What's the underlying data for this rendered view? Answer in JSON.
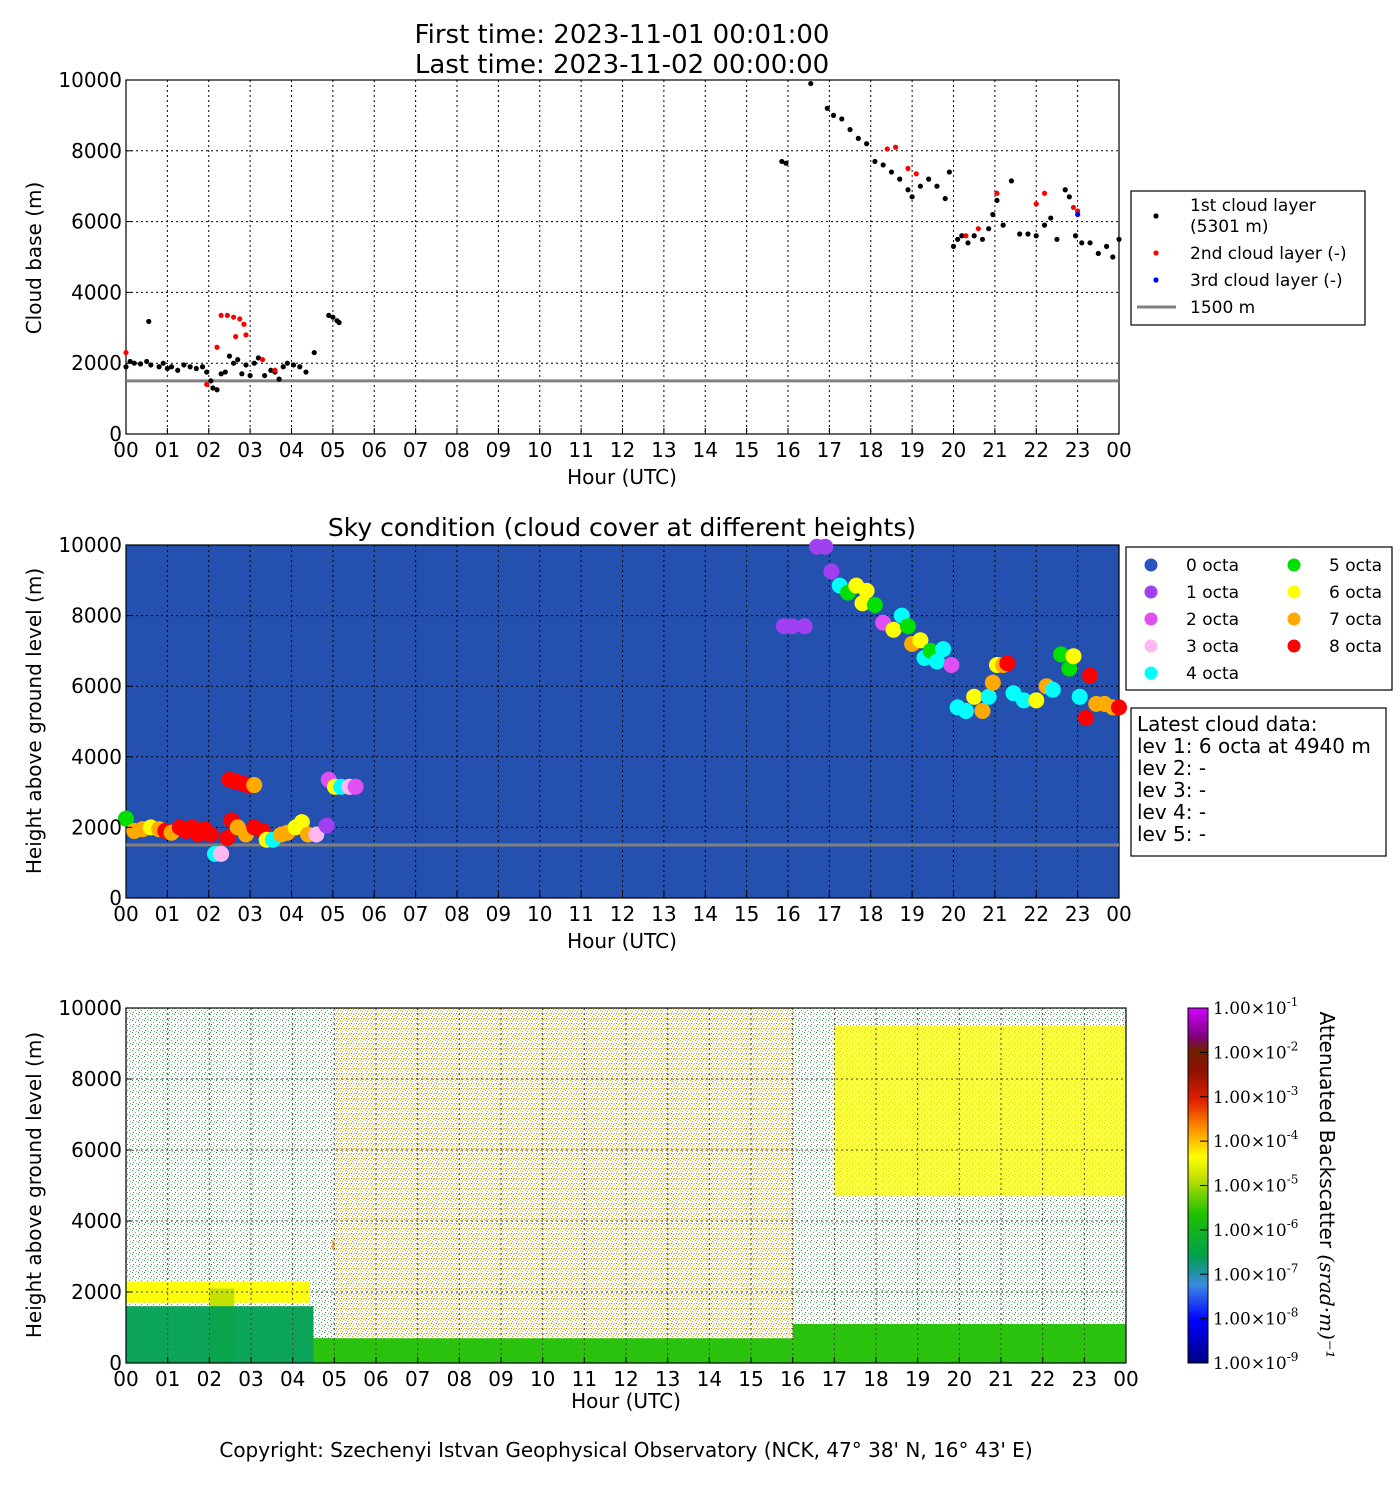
{
  "header": {
    "first_time": "First time: 2023-11-01 00:01:00",
    "last_time": "Last time: 2023-11-02 00:00:00"
  },
  "footer": {
    "copyright": "Copyright: Szechenyi Istvan Geophysical Observatory (NCK, 47° 38' N, 16° 43' E)"
  },
  "colors": {
    "sky_background": "#2450b0",
    "reference_line": "#808080",
    "layer1": "#000000",
    "layer2": "#ff0000",
    "layer3": "#0000ff",
    "octa": [
      "#2a55c0",
      "#a040f0",
      "#e050f0",
      "#ffb8f0",
      "#00ffff",
      "#00e000",
      "#ffff00",
      "#ffaa00",
      "#ff0000"
    ]
  },
  "chart_data": [
    {
      "type": "scatter",
      "title": "",
      "xlabel": "Hour (UTC)",
      "ylabel": "Cloud base (m)",
      "xlim": [
        0,
        24
      ],
      "ylim": [
        0,
        10000
      ],
      "x_ticks": [
        "00",
        "01",
        "02",
        "03",
        "04",
        "05",
        "06",
        "07",
        "08",
        "09",
        "10",
        "11",
        "12",
        "13",
        "14",
        "15",
        "16",
        "17",
        "18",
        "19",
        "20",
        "21",
        "22",
        "23",
        "00"
      ],
      "y_ticks": [
        "0",
        "2000",
        "4000",
        "6000",
        "8000",
        "10000"
      ],
      "grid": true,
      "legend_position": "outside-right",
      "reference_line": {
        "y": 1500,
        "label": "1500 m"
      },
      "series": [
        {
          "name": "1st cloud layer\n(5301 m)",
          "label_lines": [
            "1st cloud layer",
            "(5301 m)"
          ],
          "points": [
            [
              0.0,
              1900
            ],
            [
              0.1,
              2050
            ],
            [
              0.2,
              2000
            ],
            [
              0.35,
              1980
            ],
            [
              0.5,
              2050
            ],
            [
              0.55,
              3180
            ],
            [
              0.6,
              1950
            ],
            [
              0.8,
              1900
            ],
            [
              0.9,
              2000
            ],
            [
              1.0,
              1850
            ],
            [
              1.1,
              1900
            ],
            [
              1.25,
              1800
            ],
            [
              1.4,
              1950
            ],
            [
              1.55,
              1900
            ],
            [
              1.7,
              1850
            ],
            [
              1.85,
              1900
            ],
            [
              1.95,
              1750
            ],
            [
              2.05,
              1500
            ],
            [
              2.1,
              1300
            ],
            [
              2.2,
              1250
            ],
            [
              2.3,
              1700
            ],
            [
              2.4,
              1750
            ],
            [
              2.5,
              2200
            ],
            [
              2.6,
              2000
            ],
            [
              2.7,
              2100
            ],
            [
              2.8,
              1700
            ],
            [
              2.9,
              1950
            ],
            [
              3.0,
              1650
            ],
            [
              3.1,
              2000
            ],
            [
              3.2,
              2150
            ],
            [
              3.35,
              1650
            ],
            [
              3.5,
              1800
            ],
            [
              3.6,
              1750
            ],
            [
              3.7,
              1550
            ],
            [
              3.8,
              1900
            ],
            [
              3.9,
              2000
            ],
            [
              4.05,
              1950
            ],
            [
              4.2,
              1900
            ],
            [
              4.35,
              1750
            ],
            [
              4.55,
              2300
            ],
            [
              4.9,
              3350
            ],
            [
              5.0,
              3300
            ],
            [
              5.1,
              3200
            ],
            [
              5.15,
              3150
            ],
            [
              15.85,
              7700
            ],
            [
              15.95,
              7650
            ],
            [
              16.55,
              9900
            ],
            [
              16.95,
              9200
            ],
            [
              17.1,
              9000
            ],
            [
              17.3,
              8900
            ],
            [
              17.5,
              8600
            ],
            [
              17.7,
              8350
            ],
            [
              17.9,
              8200
            ],
            [
              18.1,
              7700
            ],
            [
              18.3,
              7600
            ],
            [
              18.5,
              7400
            ],
            [
              18.7,
              7200
            ],
            [
              18.9,
              6900
            ],
            [
              19.0,
              6700
            ],
            [
              19.2,
              7000
            ],
            [
              19.4,
              7200
            ],
            [
              19.6,
              7000
            ],
            [
              19.8,
              6650
            ],
            [
              19.9,
              7400
            ],
            [
              20.0,
              5300
            ],
            [
              20.1,
              5500
            ],
            [
              20.2,
              5600
            ],
            [
              20.35,
              5400
            ],
            [
              20.5,
              5600
            ],
            [
              20.7,
              5500
            ],
            [
              20.85,
              5800
            ],
            [
              20.95,
              6200
            ],
            [
              21.05,
              6600
            ],
            [
              21.2,
              5900
            ],
            [
              21.4,
              7150
            ],
            [
              21.6,
              5650
            ],
            [
              21.8,
              5650
            ],
            [
              22.0,
              5600
            ],
            [
              22.2,
              5900
            ],
            [
              22.35,
              6100
            ],
            [
              22.5,
              5500
            ],
            [
              22.7,
              6900
            ],
            [
              22.8,
              6700
            ],
            [
              22.95,
              5600
            ],
            [
              23.1,
              5400
            ],
            [
              23.3,
              5400
            ],
            [
              23.5,
              5100
            ],
            [
              23.7,
              5300
            ],
            [
              23.85,
              5000
            ],
            [
              24.0,
              5500
            ]
          ]
        },
        {
          "name": "2nd cloud layer (-)",
          "points": [
            [
              0.0,
              2300
            ],
            [
              1.95,
              1400
            ],
            [
              2.2,
              2450
            ],
            [
              2.3,
              3350
            ],
            [
              2.45,
              3350
            ],
            [
              2.6,
              3300
            ],
            [
              2.75,
              3250
            ],
            [
              2.85,
              3100
            ],
            [
              2.9,
              2800
            ],
            [
              2.65,
              2750
            ],
            [
              3.3,
              2100
            ],
            [
              3.6,
              1800
            ],
            [
              18.4,
              8050
            ],
            [
              18.6,
              8100
            ],
            [
              18.9,
              7500
            ],
            [
              19.1,
              7350
            ],
            [
              20.3,
              5600
            ],
            [
              20.6,
              5800
            ],
            [
              21.05,
              6800
            ],
            [
              22.0,
              6500
            ],
            [
              22.2,
              6800
            ],
            [
              22.9,
              6400
            ],
            [
              23.0,
              6300
            ]
          ]
        },
        {
          "name": "3rd cloud layer (-)",
          "points": [
            [
              23.0,
              6200
            ]
          ]
        }
      ]
    },
    {
      "type": "scatter",
      "title": "Sky condition (cloud cover at different heights)",
      "xlabel": "Hour (UTC)",
      "ylabel": "Height above ground level (m)",
      "xlim": [
        0,
        24
      ],
      "ylim": [
        0,
        10000
      ],
      "x_ticks": [
        "00",
        "01",
        "02",
        "03",
        "04",
        "05",
        "06",
        "07",
        "08",
        "09",
        "10",
        "11",
        "12",
        "13",
        "14",
        "15",
        "16",
        "17",
        "18",
        "19",
        "20",
        "21",
        "22",
        "23",
        "00"
      ],
      "y_ticks": [
        "0",
        "2000",
        "4000",
        "6000",
        "8000",
        "10000"
      ],
      "grid": true,
      "legend_position": "outside-right",
      "reference_line": {
        "y": 1500
      },
      "legend": [
        "0 octa",
        "1 octa",
        "2 octa",
        "3 octa",
        "4 octa",
        "5 octa",
        "6 octa",
        "7 octa",
        "8 octa"
      ],
      "info_box": {
        "title": "Latest cloud data:",
        "lines": [
          "lev 1: 6 octa at 4940 m",
          "lev 2: -",
          "lev 3: -",
          "lev 4: -",
          "lev 5: -"
        ]
      },
      "points": [
        [
          0.0,
          2250,
          5
        ],
        [
          0.2,
          1900,
          7
        ],
        [
          0.4,
          1950,
          7
        ],
        [
          0.6,
          2000,
          6
        ],
        [
          0.8,
          1950,
          7
        ],
        [
          0.95,
          1900,
          8
        ],
        [
          1.1,
          1850,
          7
        ],
        [
          1.3,
          2000,
          8
        ],
        [
          1.45,
          1900,
          8
        ],
        [
          1.6,
          2000,
          8
        ],
        [
          1.75,
          1800,
          8
        ],
        [
          1.9,
          1950,
          8
        ],
        [
          2.05,
          1800,
          8
        ],
        [
          2.15,
          1250,
          4
        ],
        [
          2.3,
          1250,
          3
        ],
        [
          2.45,
          1700,
          8
        ],
        [
          2.55,
          2200,
          8
        ],
        [
          2.5,
          3350,
          8
        ],
        [
          2.65,
          3300,
          8
        ],
        [
          2.8,
          3250,
          8
        ],
        [
          2.95,
          3200,
          8
        ],
        [
          3.1,
          3200,
          7
        ],
        [
          2.7,
          2000,
          7
        ],
        [
          2.9,
          1800,
          7
        ],
        [
          3.1,
          2000,
          8
        ],
        [
          3.3,
          1900,
          8
        ],
        [
          3.4,
          1650,
          6
        ],
        [
          3.55,
          1650,
          4
        ],
        [
          3.75,
          1800,
          7
        ],
        [
          3.9,
          1850,
          7
        ],
        [
          4.1,
          2000,
          6
        ],
        [
          4.25,
          2150,
          6
        ],
        [
          4.4,
          1800,
          7
        ],
        [
          4.6,
          1800,
          3
        ],
        [
          4.85,
          2050,
          1
        ],
        [
          4.9,
          3350,
          2
        ],
        [
          5.05,
          3150,
          6
        ],
        [
          5.2,
          3150,
          4
        ],
        [
          5.4,
          3150,
          3
        ],
        [
          5.55,
          3150,
          2
        ],
        [
          15.9,
          7700,
          1
        ],
        [
          16.1,
          7700,
          1
        ],
        [
          16.4,
          7700,
          1
        ],
        [
          16.7,
          9950,
          1
        ],
        [
          16.9,
          9950,
          1
        ],
        [
          17.05,
          9250,
          1
        ],
        [
          17.25,
          8850,
          4
        ],
        [
          17.45,
          8650,
          5
        ],
        [
          17.65,
          8850,
          6
        ],
        [
          17.8,
          8350,
          6
        ],
        [
          17.9,
          8700,
          6
        ],
        [
          18.1,
          8300,
          5
        ],
        [
          18.3,
          7800,
          2
        ],
        [
          18.55,
          7600,
          6
        ],
        [
          18.75,
          8000,
          4
        ],
        [
          18.9,
          7700,
          5
        ],
        [
          19.0,
          7200,
          7
        ],
        [
          19.2,
          7300,
          6
        ],
        [
          19.3,
          6800,
          4
        ],
        [
          19.45,
          7000,
          5
        ],
        [
          19.6,
          6700,
          4
        ],
        [
          19.75,
          7050,
          4
        ],
        [
          19.95,
          6600,
          2
        ],
        [
          20.1,
          5400,
          4
        ],
        [
          20.3,
          5300,
          4
        ],
        [
          20.5,
          5700,
          6
        ],
        [
          20.7,
          5300,
          7
        ],
        [
          20.85,
          5700,
          4
        ],
        [
          20.95,
          6100,
          7
        ],
        [
          21.05,
          6600,
          6
        ],
        [
          21.2,
          6600,
          7
        ],
        [
          21.3,
          6650,
          8
        ],
        [
          21.45,
          5800,
          4
        ],
        [
          21.7,
          5600,
          4
        ],
        [
          22.0,
          5600,
          6
        ],
        [
          22.25,
          6000,
          7
        ],
        [
          22.4,
          5900,
          4
        ],
        [
          22.6,
          6900,
          5
        ],
        [
          22.8,
          6500,
          5
        ],
        [
          22.9,
          6850,
          6
        ],
        [
          23.05,
          5700,
          4
        ],
        [
          23.2,
          5100,
          8
        ],
        [
          23.3,
          6300,
          8
        ],
        [
          23.45,
          5500,
          7
        ],
        [
          23.65,
          5500,
          7
        ],
        [
          23.85,
          5400,
          7
        ],
        [
          24.0,
          5400,
          8
        ]
      ]
    },
    {
      "type": "heatmap",
      "title": "",
      "xlabel": "Hour (UTC)",
      "ylabel": "Height above ground level (m)",
      "xlim": [
        0,
        24
      ],
      "ylim": [
        0,
        10000
      ],
      "x_ticks": [
        "00",
        "01",
        "02",
        "03",
        "04",
        "05",
        "06",
        "07",
        "08",
        "09",
        "10",
        "11",
        "12",
        "13",
        "14",
        "15",
        "16",
        "17",
        "18",
        "19",
        "20",
        "21",
        "22",
        "23",
        "00"
      ],
      "y_ticks": [
        "0",
        "2000",
        "4000",
        "6000",
        "8000",
        "10000"
      ],
      "grid": true,
      "colorbar": {
        "label": "Attenuated Backscatter",
        "units": "(srad·m)⁻¹",
        "scale": "log",
        "range": [
          1e-09,
          0.1
        ],
        "tick_mantissa": "1.00",
        "tick_exponents": [
          "-9",
          "-8",
          "-7",
          "-6",
          "-5",
          "-4",
          "-3",
          "-2",
          "-1"
        ]
      },
      "features": [
        {
          "name": "low cloud layer",
          "x": [
            0.0,
            4.4
          ],
          "y": [
            1700,
            2300
          ],
          "log_value": -4.5
        },
        {
          "name": "precipitation",
          "x": [
            2.0,
            2.6
          ],
          "y": [
            0,
            2100
          ],
          "log_value": -5.0
        },
        {
          "name": "cloud patch",
          "x": [
            4.95,
            5.15
          ],
          "y": [
            3200,
            3450
          ],
          "log_value": -4.3
        },
        {
          "name": "boundary layer 00-05",
          "x": [
            0.0,
            4.5
          ],
          "y": [
            0,
            1600
          ],
          "log_value": -6.7
        },
        {
          "name": "boundary layer 05-16",
          "x": [
            4.5,
            16.0
          ],
          "y": [
            0,
            700
          ],
          "log_value": -6.5
        },
        {
          "name": "boundary layer 16-24",
          "x": [
            16.0,
            24.0
          ],
          "y": [
            0,
            1100
          ],
          "log_value": -6.6
        },
        {
          "name": "residual aerosol 05-16",
          "x": [
            5.0,
            16.0
          ],
          "y": [
            700,
            10000
          ],
          "log_value": -5.3
        },
        {
          "name": "upper cloud",
          "x": [
            17.0,
            24.0
          ],
          "y": [
            4700,
            9500
          ],
          "log_value": -4.8
        }
      ]
    }
  ]
}
